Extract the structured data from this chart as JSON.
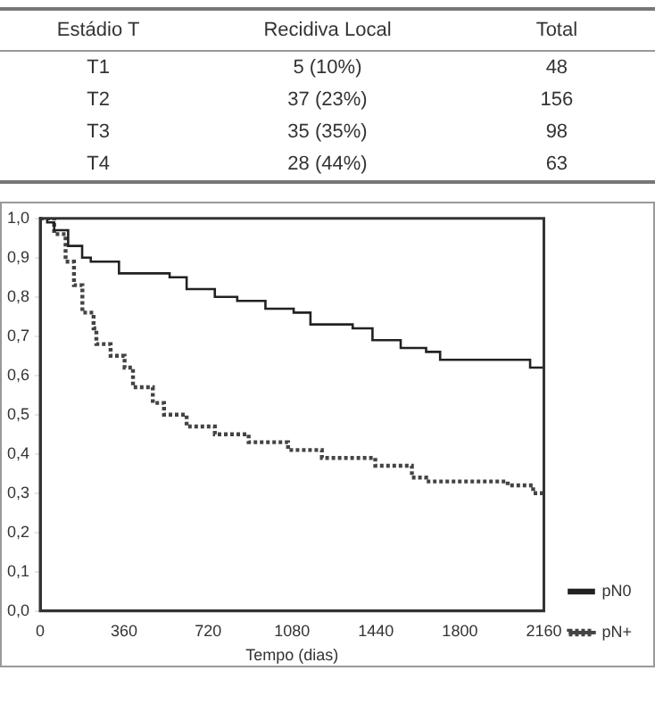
{
  "chart_data": [
    {
      "type": "other",
      "annotations": [
        "Estádio T",
        "Recidiva Local",
        "Total",
        "T1",
        "5 (10%)",
        "48",
        "T2",
        "37 (23%)",
        "156",
        "T3",
        "35 (35%)",
        "98",
        "T4",
        "28 (44%)",
        "63"
      ]
    },
    {
      "type": "step",
      "xlabel": "Tempo (dias)",
      "xlim": [
        0,
        2160
      ],
      "xticks": [
        0,
        360,
        720,
        1080,
        1440,
        1800,
        2160
      ],
      "ylim": [
        0,
        1
      ],
      "yticks": [
        {
          "value": 0,
          "label": "0,0"
        },
        {
          "value": 0.1,
          "label": "0,1"
        },
        {
          "value": 0.2,
          "label": "0,2"
        },
        {
          "value": 0.3,
          "label": "0,3"
        },
        {
          "value": 0.4,
          "label": "0,4"
        },
        {
          "value": 0.5,
          "label": "0,5"
        },
        {
          "value": 0.6,
          "label": "0,6"
        },
        {
          "value": 0.7,
          "label": "0,7"
        },
        {
          "value": 0.8,
          "label": "0,8"
        },
        {
          "value": 0.9,
          "label": "0,9"
        },
        {
          "value": 1,
          "label": "1,0"
        }
      ],
      "legend": "bottom right",
      "grid": false,
      "marker": "none",
      "series": [
        {
          "name": "pN0",
          "color": "#222222",
          "line_style": "solid",
          "x": [
            0,
            30,
            60,
            120,
            180,
            217,
            338,
            555,
            628,
            749,
            845,
            966,
            1087,
            1159,
            1340,
            1425,
            1546,
            1655,
            1715,
            2101,
            2160
          ],
          "values": [
            1.0,
            0.99,
            0.97,
            0.93,
            0.9,
            0.89,
            0.86,
            0.85,
            0.82,
            0.8,
            0.79,
            0.77,
            0.76,
            0.73,
            0.72,
            0.69,
            0.67,
            0.66,
            0.64,
            0.62,
            0.62
          ]
        },
        {
          "name": "pN+",
          "color": "#444444",
          "line_style": "dotted",
          "x": [
            0,
            60,
            109,
            145,
            181,
            229,
            241,
            302,
            362,
            398,
            483,
            531,
            628,
            749,
            894,
            1063,
            1208,
            1437,
            1594,
            1655,
            2005,
            2114,
            2160
          ],
          "values": [
            1.0,
            0.96,
            0.89,
            0.83,
            0.76,
            0.72,
            0.68,
            0.65,
            0.62,
            0.57,
            0.53,
            0.5,
            0.47,
            0.45,
            0.43,
            0.41,
            0.39,
            0.37,
            0.34,
            0.33,
            0.32,
            0.3,
            0.3
          ]
        }
      ]
    }
  ]
}
